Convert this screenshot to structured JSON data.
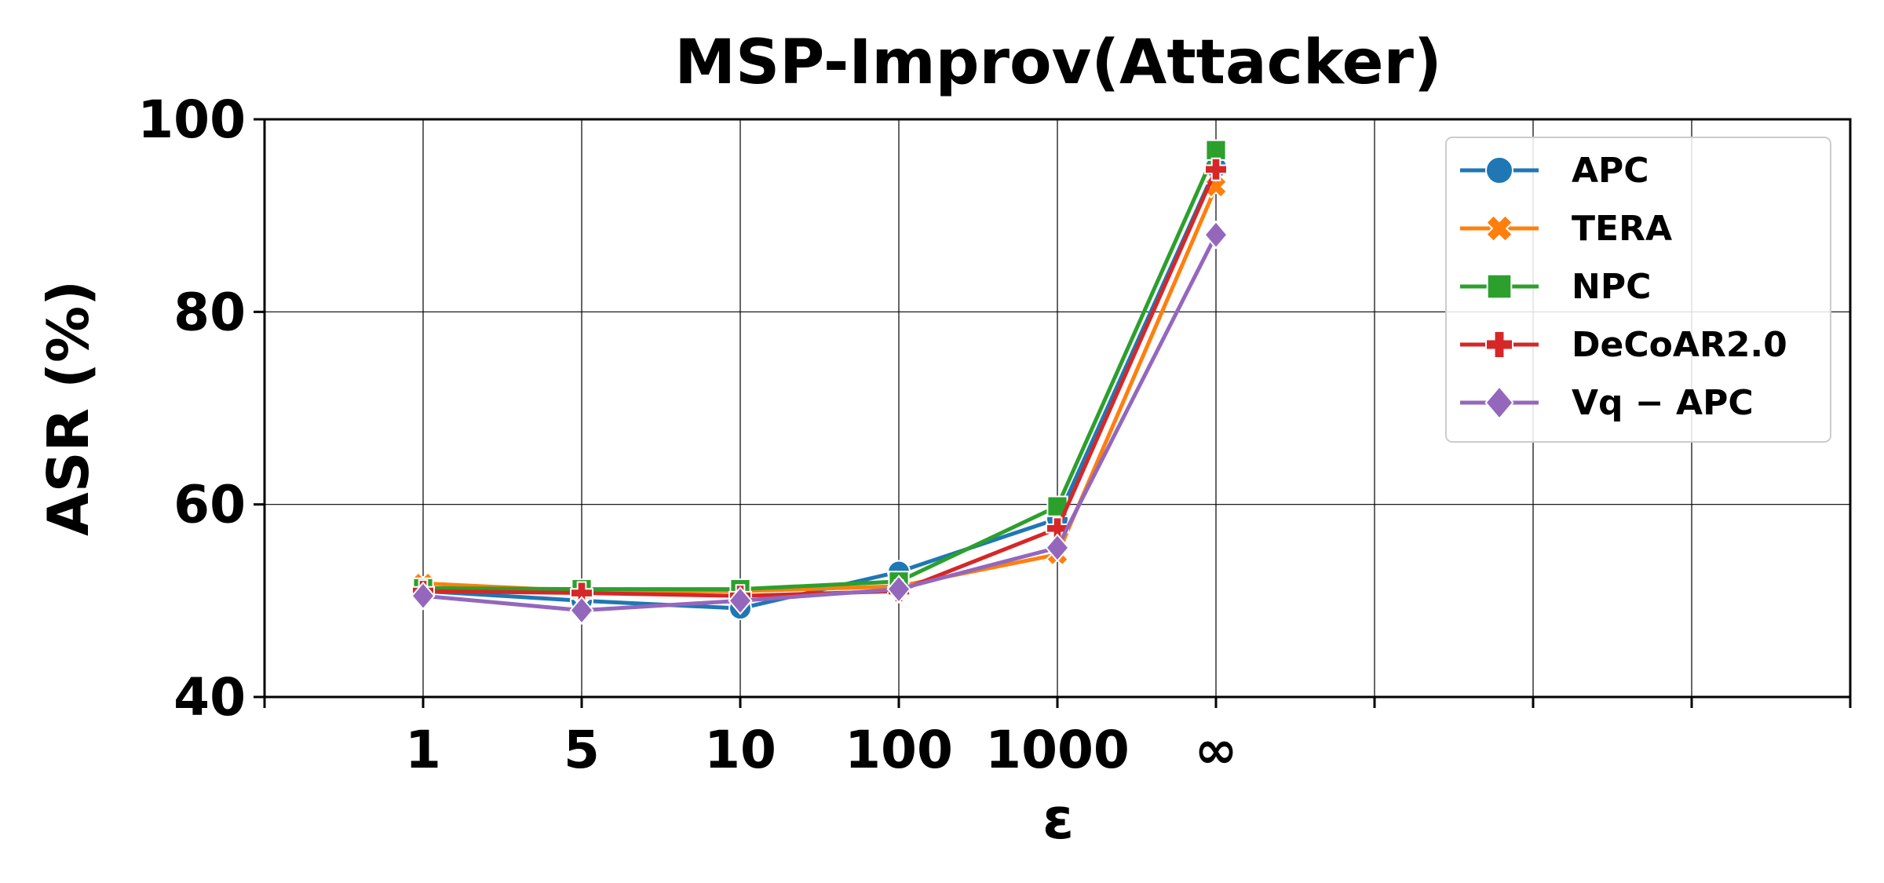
{
  "chart_data": {
    "type": "line",
    "title": "MSP-Improv(Attacker)",
    "xlabel": "ε",
    "ylabel": "ASR (%)",
    "categories": [
      "1",
      "5",
      "10",
      "100",
      "1000",
      "∞"
    ],
    "x_tick_count": 9,
    "ylim": [
      40,
      100
    ],
    "yticks": [
      40,
      60,
      80,
      100
    ],
    "grid": true,
    "legend_position": "top-right",
    "series": [
      {
        "name": "APC",
        "color": "#1f77b4",
        "marker": "circle",
        "values": [
          51.0,
          50.0,
          49.2,
          53.0,
          58.5,
          95.0
        ]
      },
      {
        "name": "TERA",
        "color": "#ff7f0e",
        "marker": "x-filled",
        "values": [
          51.8,
          51.0,
          51.0,
          51.5,
          54.8,
          93.0
        ]
      },
      {
        "name": "NPC",
        "color": "#2ca02c",
        "marker": "square",
        "values": [
          51.3,
          51.2,
          51.2,
          52.0,
          59.8,
          96.8
        ]
      },
      {
        "name": "DeCoAR2.0",
        "color": "#d62728",
        "marker": "plus-filled",
        "values": [
          51.0,
          50.8,
          50.5,
          51.0,
          57.5,
          94.8
        ]
      },
      {
        "name": "Vq − APC",
        "color": "#9467bd",
        "marker": "diamond",
        "values": [
          50.5,
          49.0,
          50.0,
          51.2,
          55.5,
          88.0
        ]
      }
    ]
  }
}
